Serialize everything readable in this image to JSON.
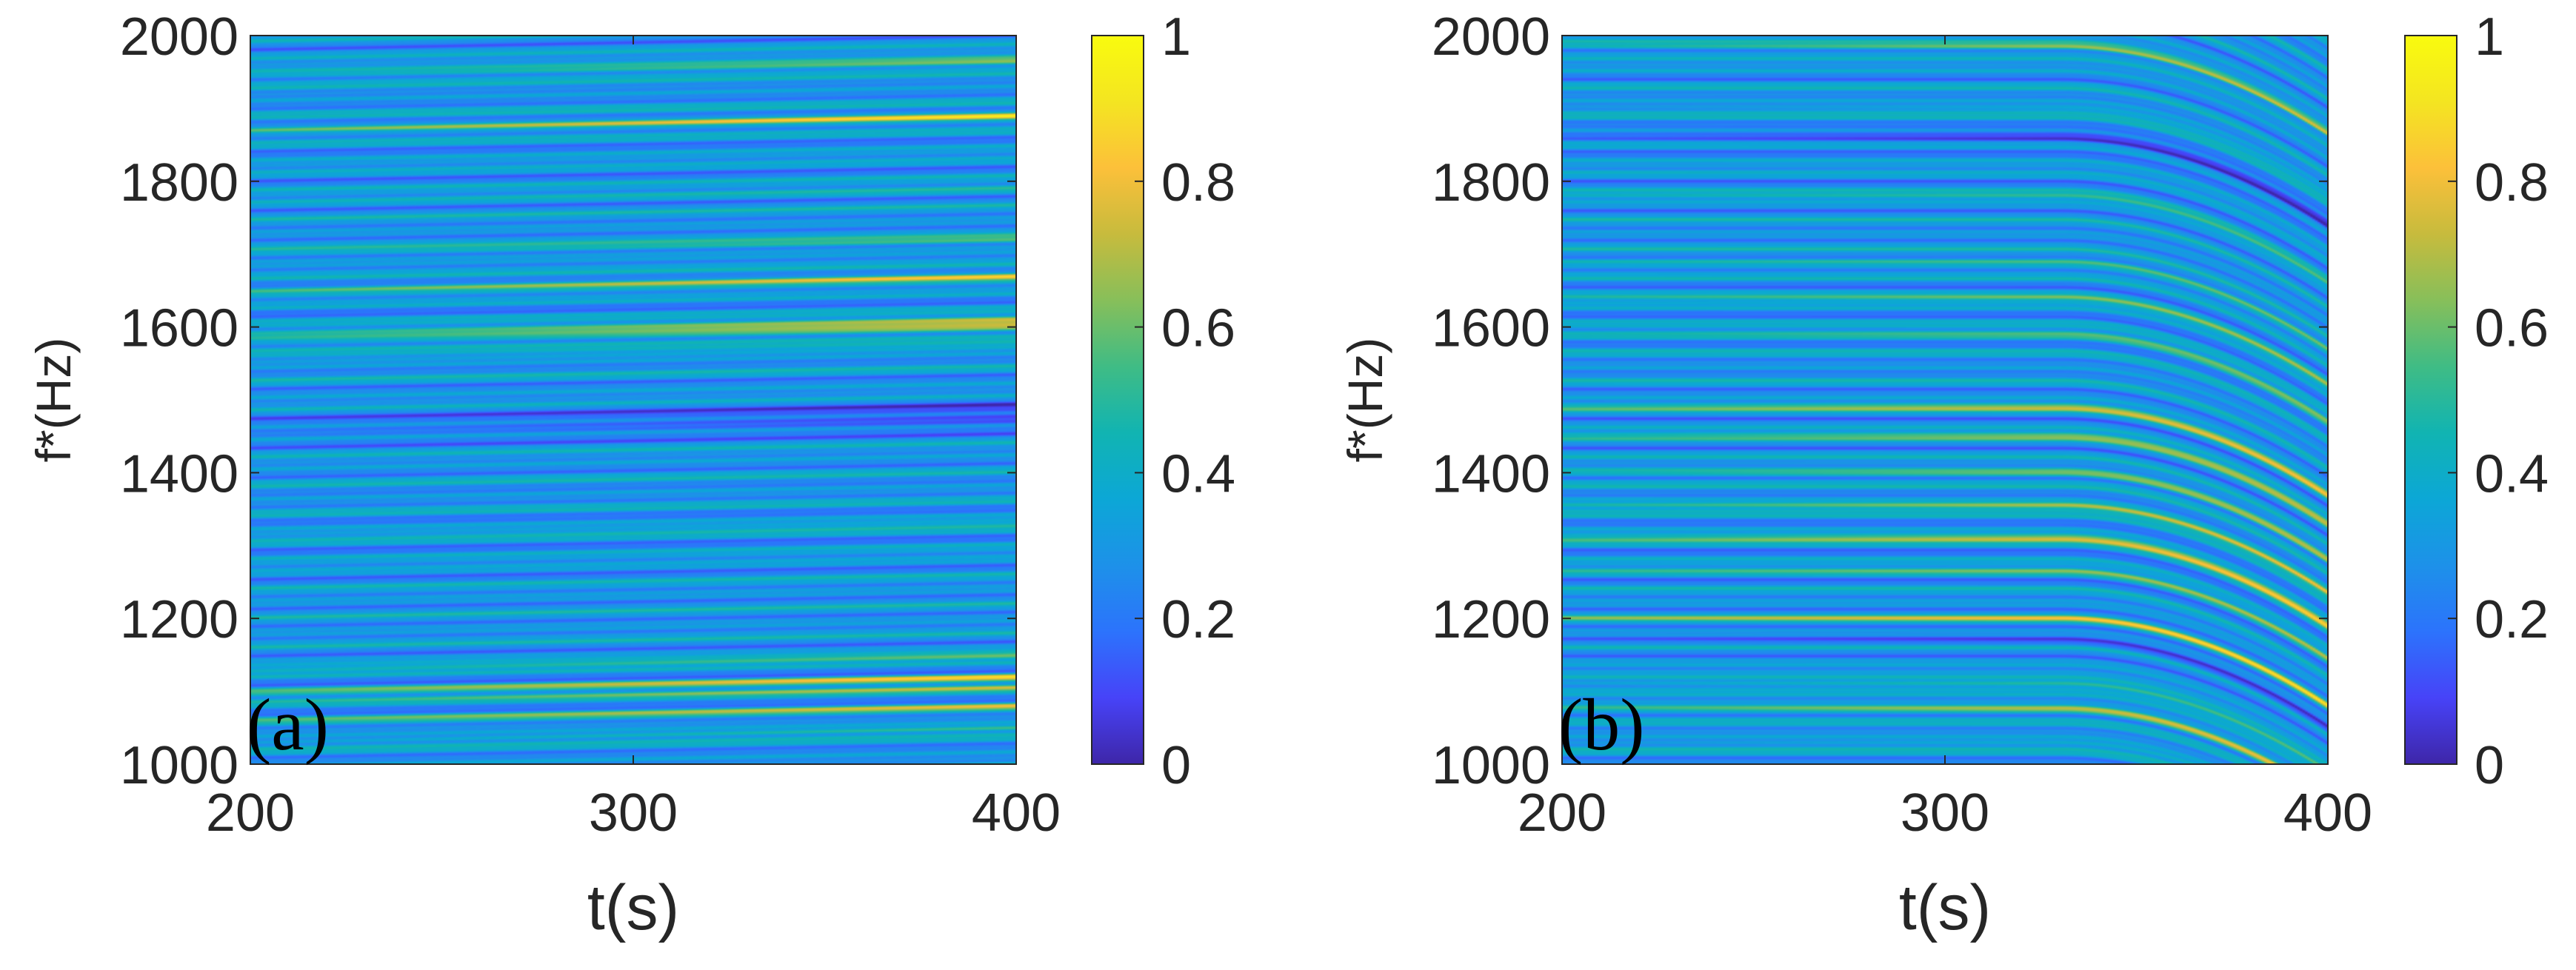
{
  "colormap": {
    "name": "parula",
    "stops": [
      "#3e26a8",
      "#4743f8",
      "#2c73fc",
      "#1d91e9",
      "#0ca7d6",
      "#11b4b2",
      "#3fbc85",
      "#87bf5a",
      "#c7bb3d",
      "#fcc03a",
      "#f4e521",
      "#f9fb0e"
    ]
  },
  "chart_data": [
    {
      "type": "heatmap",
      "panel_label": "(a)",
      "title": "",
      "xlabel": "t(s)",
      "ylabel": "f*(Hz)",
      "xlim": [
        200,
        400
      ],
      "ylim": [
        1000,
        2000
      ],
      "xticks": [
        200,
        300,
        400
      ],
      "xtick_labels": [
        "200",
        "300",
        "400"
      ],
      "yticks": [
        1000,
        1200,
        1400,
        1600,
        1800,
        2000
      ],
      "ytick_labels": [
        "1000",
        "1200",
        "1400",
        "1600",
        "1800",
        "2000"
      ],
      "colorbar": {
        "range": [
          0,
          1
        ],
        "ticks": [
          0,
          0.2,
          0.4,
          0.6,
          0.8,
          1
        ],
        "tick_labels": [
          "0",
          "0.2",
          "0.4",
          "0.6",
          "0.8",
          "1"
        ]
      },
      "pattern": "near-horizontal spectral bands with slight upward drift in frequency over time",
      "background_level": 0.3,
      "drift_hz_at_end": 20,
      "ridges": [
        {
          "f": 1030,
          "amp": 0.3,
          "width": 4
        },
        {
          "f": 1060,
          "amp": 0.4,
          "width": 4
        },
        {
          "f": 1085,
          "amp": 0.45,
          "width": 4
        },
        {
          "f": 1100,
          "amp": 0.55,
          "width": 4
        },
        {
          "f": 1130,
          "amp": 0.35,
          "width": 4
        },
        {
          "f": 1310,
          "amp": 0.15,
          "width": 5
        },
        {
          "f": 1460,
          "amp": -0.2,
          "width": 20
        },
        {
          "f": 1555,
          "amp": 0.2,
          "width": 5
        },
        {
          "f": 1580,
          "amp": 0.5,
          "width": 5
        },
        {
          "f": 1590,
          "amp": 0.45,
          "width": 5
        },
        {
          "f": 1650,
          "amp": 0.55,
          "width": 5
        },
        {
          "f": 1700,
          "amp": 0.3,
          "width": 5
        },
        {
          "f": 1770,
          "amp": 0.15,
          "width": 5
        },
        {
          "f": 1870,
          "amp": 0.6,
          "width": 5
        },
        {
          "f": 1945,
          "amp": 0.4,
          "width": 6
        }
      ]
    },
    {
      "type": "heatmap",
      "panel_label": "(b)",
      "title": "",
      "xlabel": "t(s)",
      "ylabel": "f*(Hz)",
      "xlim": [
        200,
        400
      ],
      "ylim": [
        1000,
        2000
      ],
      "xticks": [
        200,
        300,
        400
      ],
      "xtick_labels": [
        "200",
        "300",
        "400"
      ],
      "yticks": [
        1000,
        1200,
        1400,
        1600,
        1800,
        2000
      ],
      "ytick_labels": [
        "1000",
        "1200",
        "1400",
        "1600",
        "1800",
        "2000"
      ],
      "colorbar": {
        "range": [
          0,
          1
        ],
        "ticks": [
          0,
          0.2,
          0.4,
          0.6,
          0.8,
          1
        ],
        "tick_labels": [
          "0",
          "0.2",
          "0.4",
          "0.6",
          "0.8",
          "1"
        ]
      },
      "pattern": "spectral bands flat until about t=330 s, then bending downward in frequency toward t=400 s",
      "background_level": 0.3,
      "bend_start_t": 330,
      "bend_hz_at_end": 120,
      "ridges": [
        {
          "f": 1030,
          "amp": 0.2,
          "width": 5
        },
        {
          "f": 1075,
          "amp": 0.55,
          "width": 5
        },
        {
          "f": 1110,
          "amp": 0.4,
          "width": 5
        },
        {
          "f": 1170,
          "amp": -0.2,
          "width": 8
        },
        {
          "f": 1200,
          "amp": 0.45,
          "width": 5
        },
        {
          "f": 1265,
          "amp": 0.35,
          "width": 5
        },
        {
          "f": 1310,
          "amp": 0.6,
          "width": 5
        },
        {
          "f": 1355,
          "amp": 0.55,
          "width": 5
        },
        {
          "f": 1400,
          "amp": 0.45,
          "width": 5
        },
        {
          "f": 1450,
          "amp": 0.45,
          "width": 5
        },
        {
          "f": 1490,
          "amp": 0.5,
          "width": 5
        },
        {
          "f": 1590,
          "amp": 0.35,
          "width": 5
        },
        {
          "f": 1640,
          "amp": 0.35,
          "width": 5
        },
        {
          "f": 1690,
          "amp": 0.3,
          "width": 5
        },
        {
          "f": 1780,
          "amp": 0.25,
          "width": 5
        },
        {
          "f": 1860,
          "amp": -0.25,
          "width": 10
        },
        {
          "f": 1900,
          "amp": 0.2,
          "width": 5
        },
        {
          "f": 1985,
          "amp": 0.5,
          "width": 5
        }
      ]
    }
  ]
}
